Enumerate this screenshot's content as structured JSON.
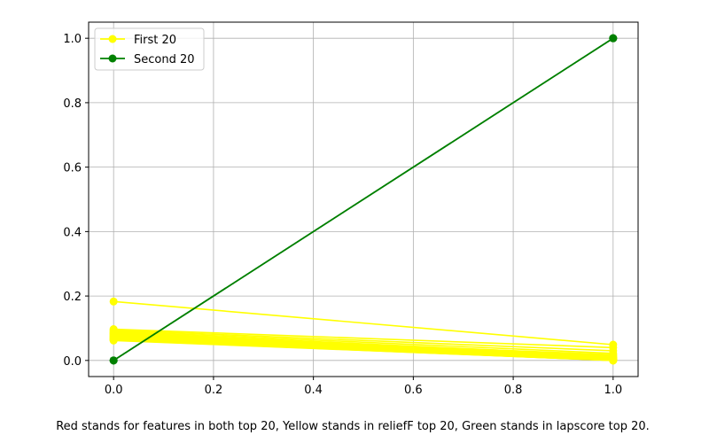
{
  "chart_data": {
    "type": "line",
    "title": "",
    "xlabel": "",
    "ylabel": "",
    "xlim": [
      -0.05,
      1.05
    ],
    "ylim": [
      -0.05,
      1.05
    ],
    "xticks": [
      0.0,
      0.2,
      0.4,
      0.6,
      0.8,
      1.0
    ],
    "yticks": [
      0.0,
      0.2,
      0.4,
      0.6,
      0.8,
      1.0
    ],
    "xtick_labels": [
      "0.0",
      "0.2",
      "0.4",
      "0.6",
      "0.8",
      "1.0"
    ],
    "ytick_labels": [
      "0.0",
      "0.2",
      "0.4",
      "0.6",
      "0.8",
      "1.0"
    ],
    "grid": true,
    "legend_position": "top-left",
    "legend": [
      {
        "label": "First 20",
        "color": "#ffff00"
      },
      {
        "label": "Second 20",
        "color": "#008000"
      }
    ],
    "series": [
      {
        "group": "First 20",
        "color": "#ffff00",
        "x": [
          0,
          1
        ],
        "y": [
          0.183,
          0.049
        ]
      },
      {
        "group": "First 20",
        "color": "#ffff00",
        "x": [
          0,
          1
        ],
        "y": [
          0.097,
          0.04
        ]
      },
      {
        "group": "First 20",
        "color": "#ffff00",
        "x": [
          0,
          1
        ],
        "y": [
          0.094,
          0.03
        ]
      },
      {
        "group": "First 20",
        "color": "#ffff00",
        "x": [
          0,
          1
        ],
        "y": [
          0.091,
          0.022
        ]
      },
      {
        "group": "First 20",
        "color": "#ffff00",
        "x": [
          0,
          1
        ],
        "y": [
          0.088,
          0.015
        ]
      },
      {
        "group": "First 20",
        "color": "#ffff00",
        "x": [
          0,
          1
        ],
        "y": [
          0.086,
          0.01
        ]
      },
      {
        "group": "First 20",
        "color": "#ffff00",
        "x": [
          0,
          1
        ],
        "y": [
          0.084,
          0.006
        ]
      },
      {
        "group": "First 20",
        "color": "#ffff00",
        "x": [
          0,
          1
        ],
        "y": [
          0.082,
          0.012
        ]
      },
      {
        "group": "First 20",
        "color": "#ffff00",
        "x": [
          0,
          1
        ],
        "y": [
          0.08,
          0.004
        ]
      },
      {
        "group": "First 20",
        "color": "#ffff00",
        "x": [
          0,
          1
        ],
        "y": [
          0.078,
          0.018
        ]
      },
      {
        "group": "First 20",
        "color": "#ffff00",
        "x": [
          0,
          1
        ],
        "y": [
          0.076,
          0.002
        ]
      },
      {
        "group": "First 20",
        "color": "#ffff00",
        "x": [
          0,
          1
        ],
        "y": [
          0.074,
          0.008
        ]
      },
      {
        "group": "First 20",
        "color": "#ffff00",
        "x": [
          0,
          1
        ],
        "y": [
          0.072,
          0.001
        ]
      },
      {
        "group": "First 20",
        "color": "#ffff00",
        "x": [
          0,
          1
        ],
        "y": [
          0.07,
          0.003
        ]
      },
      {
        "group": "First 20",
        "color": "#ffff00",
        "x": [
          0,
          1
        ],
        "y": [
          0.068,
          0.0
        ]
      },
      {
        "group": "First 20",
        "color": "#ffff00",
        "x": [
          0,
          1
        ],
        "y": [
          0.066,
          0.005
        ]
      },
      {
        "group": "First 20",
        "color": "#ffff00",
        "x": [
          0,
          1
        ],
        "y": [
          0.065,
          0.001
        ]
      },
      {
        "group": "First 20",
        "color": "#ffff00",
        "x": [
          0,
          1
        ],
        "y": [
          0.064,
          0.0
        ]
      },
      {
        "group": "First 20",
        "color": "#ffff00",
        "x": [
          0,
          1
        ],
        "y": [
          0.063,
          0.0
        ]
      },
      {
        "group": "First 20",
        "color": "#ffff00",
        "x": [
          0,
          1
        ],
        "y": [
          0.062,
          0.0
        ]
      },
      {
        "group": "Second 20",
        "color": "#008000",
        "x": [
          0,
          1
        ],
        "y": [
          0.0,
          1.0
        ]
      },
      {
        "group": "Second 20",
        "color": "#008000",
        "x": [
          0,
          1
        ],
        "y": [
          0.0,
          1.0
        ]
      },
      {
        "group": "Second 20",
        "color": "#008000",
        "x": [
          0,
          1
        ],
        "y": [
          0.0,
          1.0
        ]
      }
    ]
  },
  "caption": "Red stands for features in both top 20, Yellow stands in reliefF top 20, Green stands in lapscore top 20."
}
